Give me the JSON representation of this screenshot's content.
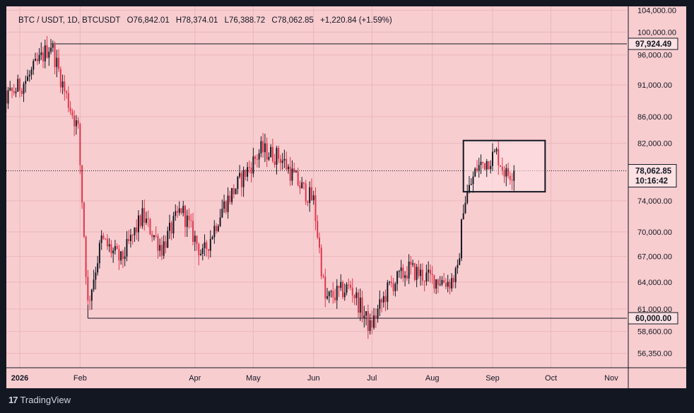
{
  "legend": {
    "symbol": "BTC / USDT, 1D, BTCUSDT",
    "open": "O76,842.01",
    "high": "H78,374.01",
    "low": "L76,388.72",
    "close": "C78,062.85",
    "change": "+1,220.84 (+1.59%)"
  },
  "branding": {
    "logo_text": "TradingView",
    "logo_glyph": "17"
  },
  "colors": {
    "up": "#131722",
    "down": "#e0364a",
    "background": "#f8cdd0",
    "frame": "#131722"
  },
  "chart_data": {
    "type": "candlestick",
    "title": "BTC / USDT, 1D, BTCUSDT",
    "x_axis": {
      "tick_labels": [
        "2026",
        "Feb",
        "Apr",
        "May",
        "Jun",
        "Jul",
        "Aug",
        "Sep",
        "Oct",
        "Nov"
      ],
      "tick_dates": [
        "2026-01-01",
        "2026-02-01",
        "2026-04-01",
        "2026-05-01",
        "2026-06-01",
        "2026-07-01",
        "2026-08-01",
        "2026-09-01",
        "2026-10-01",
        "2026-11-01"
      ]
    },
    "y_axis": {
      "side": "right",
      "tick_labels": [
        "104,000.00",
        "100,000.00",
        "96,000.00",
        "91,000.00",
        "86,000.00",
        "82,000.00",
        "74,000.00",
        "70,000.00",
        "67,000.00",
        "64,000.00",
        "61,000.00",
        "58,600.00",
        "56,350.00"
      ],
      "tick_values": [
        104000,
        100000,
        96000,
        91000,
        86000,
        82000,
        74000,
        70000,
        67000,
        64000,
        61000,
        58600,
        56350
      ]
    },
    "price_labels": [
      {
        "text": "97,924.49",
        "value": 97924.49
      },
      {
        "text": "60,000.00",
        "value": 60000
      },
      {
        "text": "78,062.85",
        "value": 78062.85,
        "countdown": "10:16:42"
      }
    ],
    "horizontal_lines": [
      {
        "value": 97924.49,
        "from": "2026-01-17",
        "to": "2026-11-30"
      },
      {
        "value": 60000,
        "from": "2026-02-05",
        "to": "2026-11-30"
      }
    ],
    "last_price_line": {
      "value": 78062.85
    },
    "rectangle": {
      "from": "2026-08-17",
      "to": "2026-09-28",
      "top": 82400,
      "bottom": 75200
    },
    "key_points": [
      [
        "2025-12-12",
        89500
      ],
      [
        "2025-12-20",
        87500
      ],
      [
        "2026-01-05",
        92000
      ],
      [
        "2026-01-10",
        94500
      ],
      [
        "2026-01-17",
        97924.49
      ],
      [
        "2026-01-24",
        90000
      ],
      [
        "2026-01-31",
        84000
      ],
      [
        "2026-02-05",
        61500
      ],
      [
        "2026-02-12",
        69000
      ],
      [
        "2026-02-22",
        66500
      ],
      [
        "2026-03-05",
        72000
      ],
      [
        "2026-03-15",
        68000
      ],
      [
        "2026-03-25",
        73000
      ],
      [
        "2026-04-05",
        67000
      ],
      [
        "2026-04-15",
        73000
      ],
      [
        "2026-04-25",
        77000
      ],
      [
        "2026-05-05",
        81000
      ],
      [
        "2026-05-15",
        80000
      ],
      [
        "2026-05-25",
        76000
      ],
      [
        "2026-06-01",
        74000
      ],
      [
        "2026-06-07",
        62000
      ],
      [
        "2026-06-20",
        63500
      ],
      [
        "2026-06-30",
        59000
      ],
      [
        "2026-07-10",
        63500
      ],
      [
        "2026-07-20",
        65500
      ],
      [
        "2026-07-30",
        64500
      ],
      [
        "2026-08-10",
        64000
      ],
      [
        "2026-08-14",
        65000
      ],
      [
        "2026-08-17",
        73500
      ],
      [
        "2026-08-24",
        78500
      ],
      [
        "2026-09-03",
        80500
      ],
      [
        "2026-09-08",
        77500
      ],
      [
        "2026-09-12",
        78062.85
      ]
    ]
  }
}
